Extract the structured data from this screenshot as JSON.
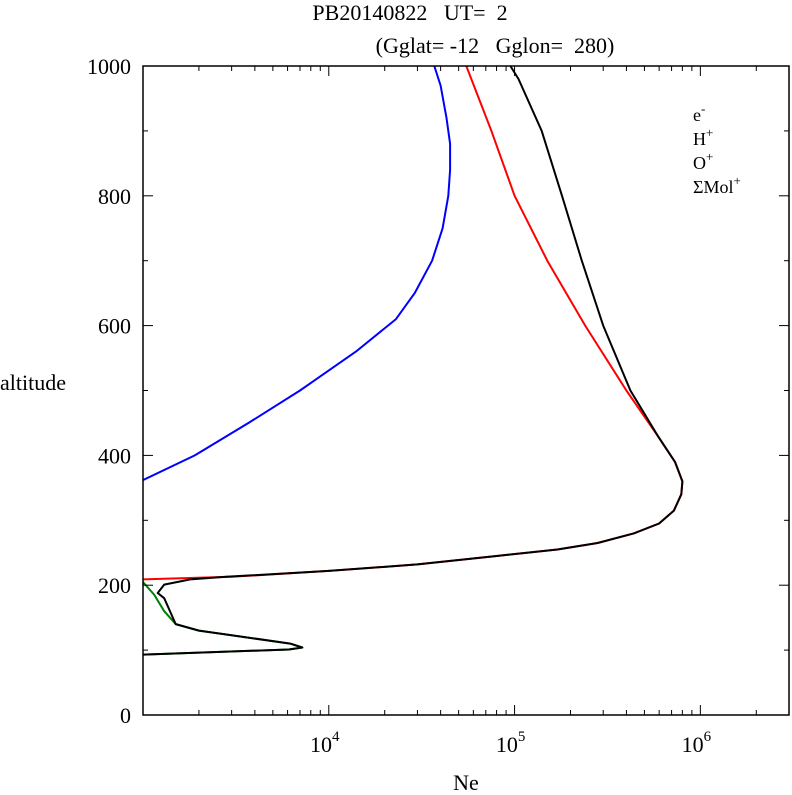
{
  "chart_data": {
    "type": "line",
    "title_line1": "PB20140822   UT=  2",
    "title_line2": "(Gglat= -12   Gglon=  280)",
    "xlabel": "Ne",
    "ylabel": "altitude",
    "x_scale": "log",
    "xlim": [
      1000,
      3000000
    ],
    "ylim": [
      0,
      1000
    ],
    "x_ticks": [
      {
        "value": 10000,
        "base": "10",
        "exp": "4"
      },
      {
        "value": 100000,
        "base": "10",
        "exp": "5"
      },
      {
        "value": 1000000,
        "base": "10",
        "exp": "6"
      }
    ],
    "y_ticks": [
      "0",
      "200",
      "400",
      "600",
      "800",
      "1000"
    ],
    "y_tick_values": [
      0,
      200,
      400,
      600,
      800,
      1000
    ],
    "legend_placement": "top-right",
    "grid": false,
    "series": [
      {
        "name": "e",
        "sup": "-",
        "color": "#000000",
        "points": [
          [
            1000,
            93
          ],
          [
            6100,
            101
          ],
          [
            7200,
            104
          ],
          [
            6200,
            110
          ],
          [
            2000,
            130
          ],
          [
            1500,
            140
          ],
          [
            1300,
            180
          ],
          [
            1200,
            188
          ],
          [
            1300,
            201
          ],
          [
            1800,
            209
          ],
          [
            2800,
            213
          ],
          [
            10000,
            222
          ],
          [
            30000,
            232
          ],
          [
            80000,
            245
          ],
          [
            170000,
            255
          ],
          [
            280000,
            265
          ],
          [
            440000,
            280
          ],
          [
            600000,
            295
          ],
          [
            720000,
            315
          ],
          [
            790000,
            340
          ],
          [
            800000,
            360
          ],
          [
            730000,
            390
          ],
          [
            590000,
            430
          ],
          [
            420000,
            500
          ],
          [
            300000,
            600
          ],
          [
            230000,
            700
          ],
          [
            180000,
            800
          ],
          [
            140000,
            900
          ],
          [
            105000,
            980
          ],
          [
            95000,
            1000
          ]
        ]
      },
      {
        "name": "H",
        "sup": "+",
        "color": "#0000ff",
        "points": [
          [
            1000,
            362
          ],
          [
            1900,
            400
          ],
          [
            3700,
            450
          ],
          [
            7000,
            500
          ],
          [
            14000,
            560
          ],
          [
            23000,
            610
          ],
          [
            29000,
            650
          ],
          [
            36000,
            700
          ],
          [
            41000,
            750
          ],
          [
            44000,
            800
          ],
          [
            45000,
            840
          ],
          [
            45000,
            880
          ],
          [
            43000,
            920
          ],
          [
            40000,
            970
          ],
          [
            37000,
            1000
          ]
        ]
      },
      {
        "name": "O",
        "sup": "+",
        "color": "#ff0000",
        "points": [
          [
            1000,
            209
          ],
          [
            3000,
            213
          ],
          [
            10000,
            222
          ],
          [
            30000,
            232
          ],
          [
            80000,
            245
          ],
          [
            170000,
            255
          ],
          [
            280000,
            265
          ],
          [
            440000,
            280
          ],
          [
            600000,
            295
          ],
          [
            720000,
            315
          ],
          [
            790000,
            340
          ],
          [
            800000,
            360
          ],
          [
            730000,
            390
          ],
          [
            590000,
            430
          ],
          [
            400000,
            500
          ],
          [
            240000,
            600
          ],
          [
            150000,
            700
          ],
          [
            100000,
            800
          ],
          [
            75000,
            900
          ],
          [
            55000,
            1000
          ]
        ]
      },
      {
        "name": "ΣMol",
        "sup": "+",
        "color": "#008000",
        "points": [
          [
            1000,
            93
          ],
          [
            6100,
            101
          ],
          [
            7200,
            104
          ],
          [
            6200,
            110
          ],
          [
            2000,
            130
          ],
          [
            1500,
            140
          ],
          [
            1300,
            160
          ],
          [
            1150,
            185
          ],
          [
            1000,
            205
          ]
        ]
      }
    ]
  }
}
